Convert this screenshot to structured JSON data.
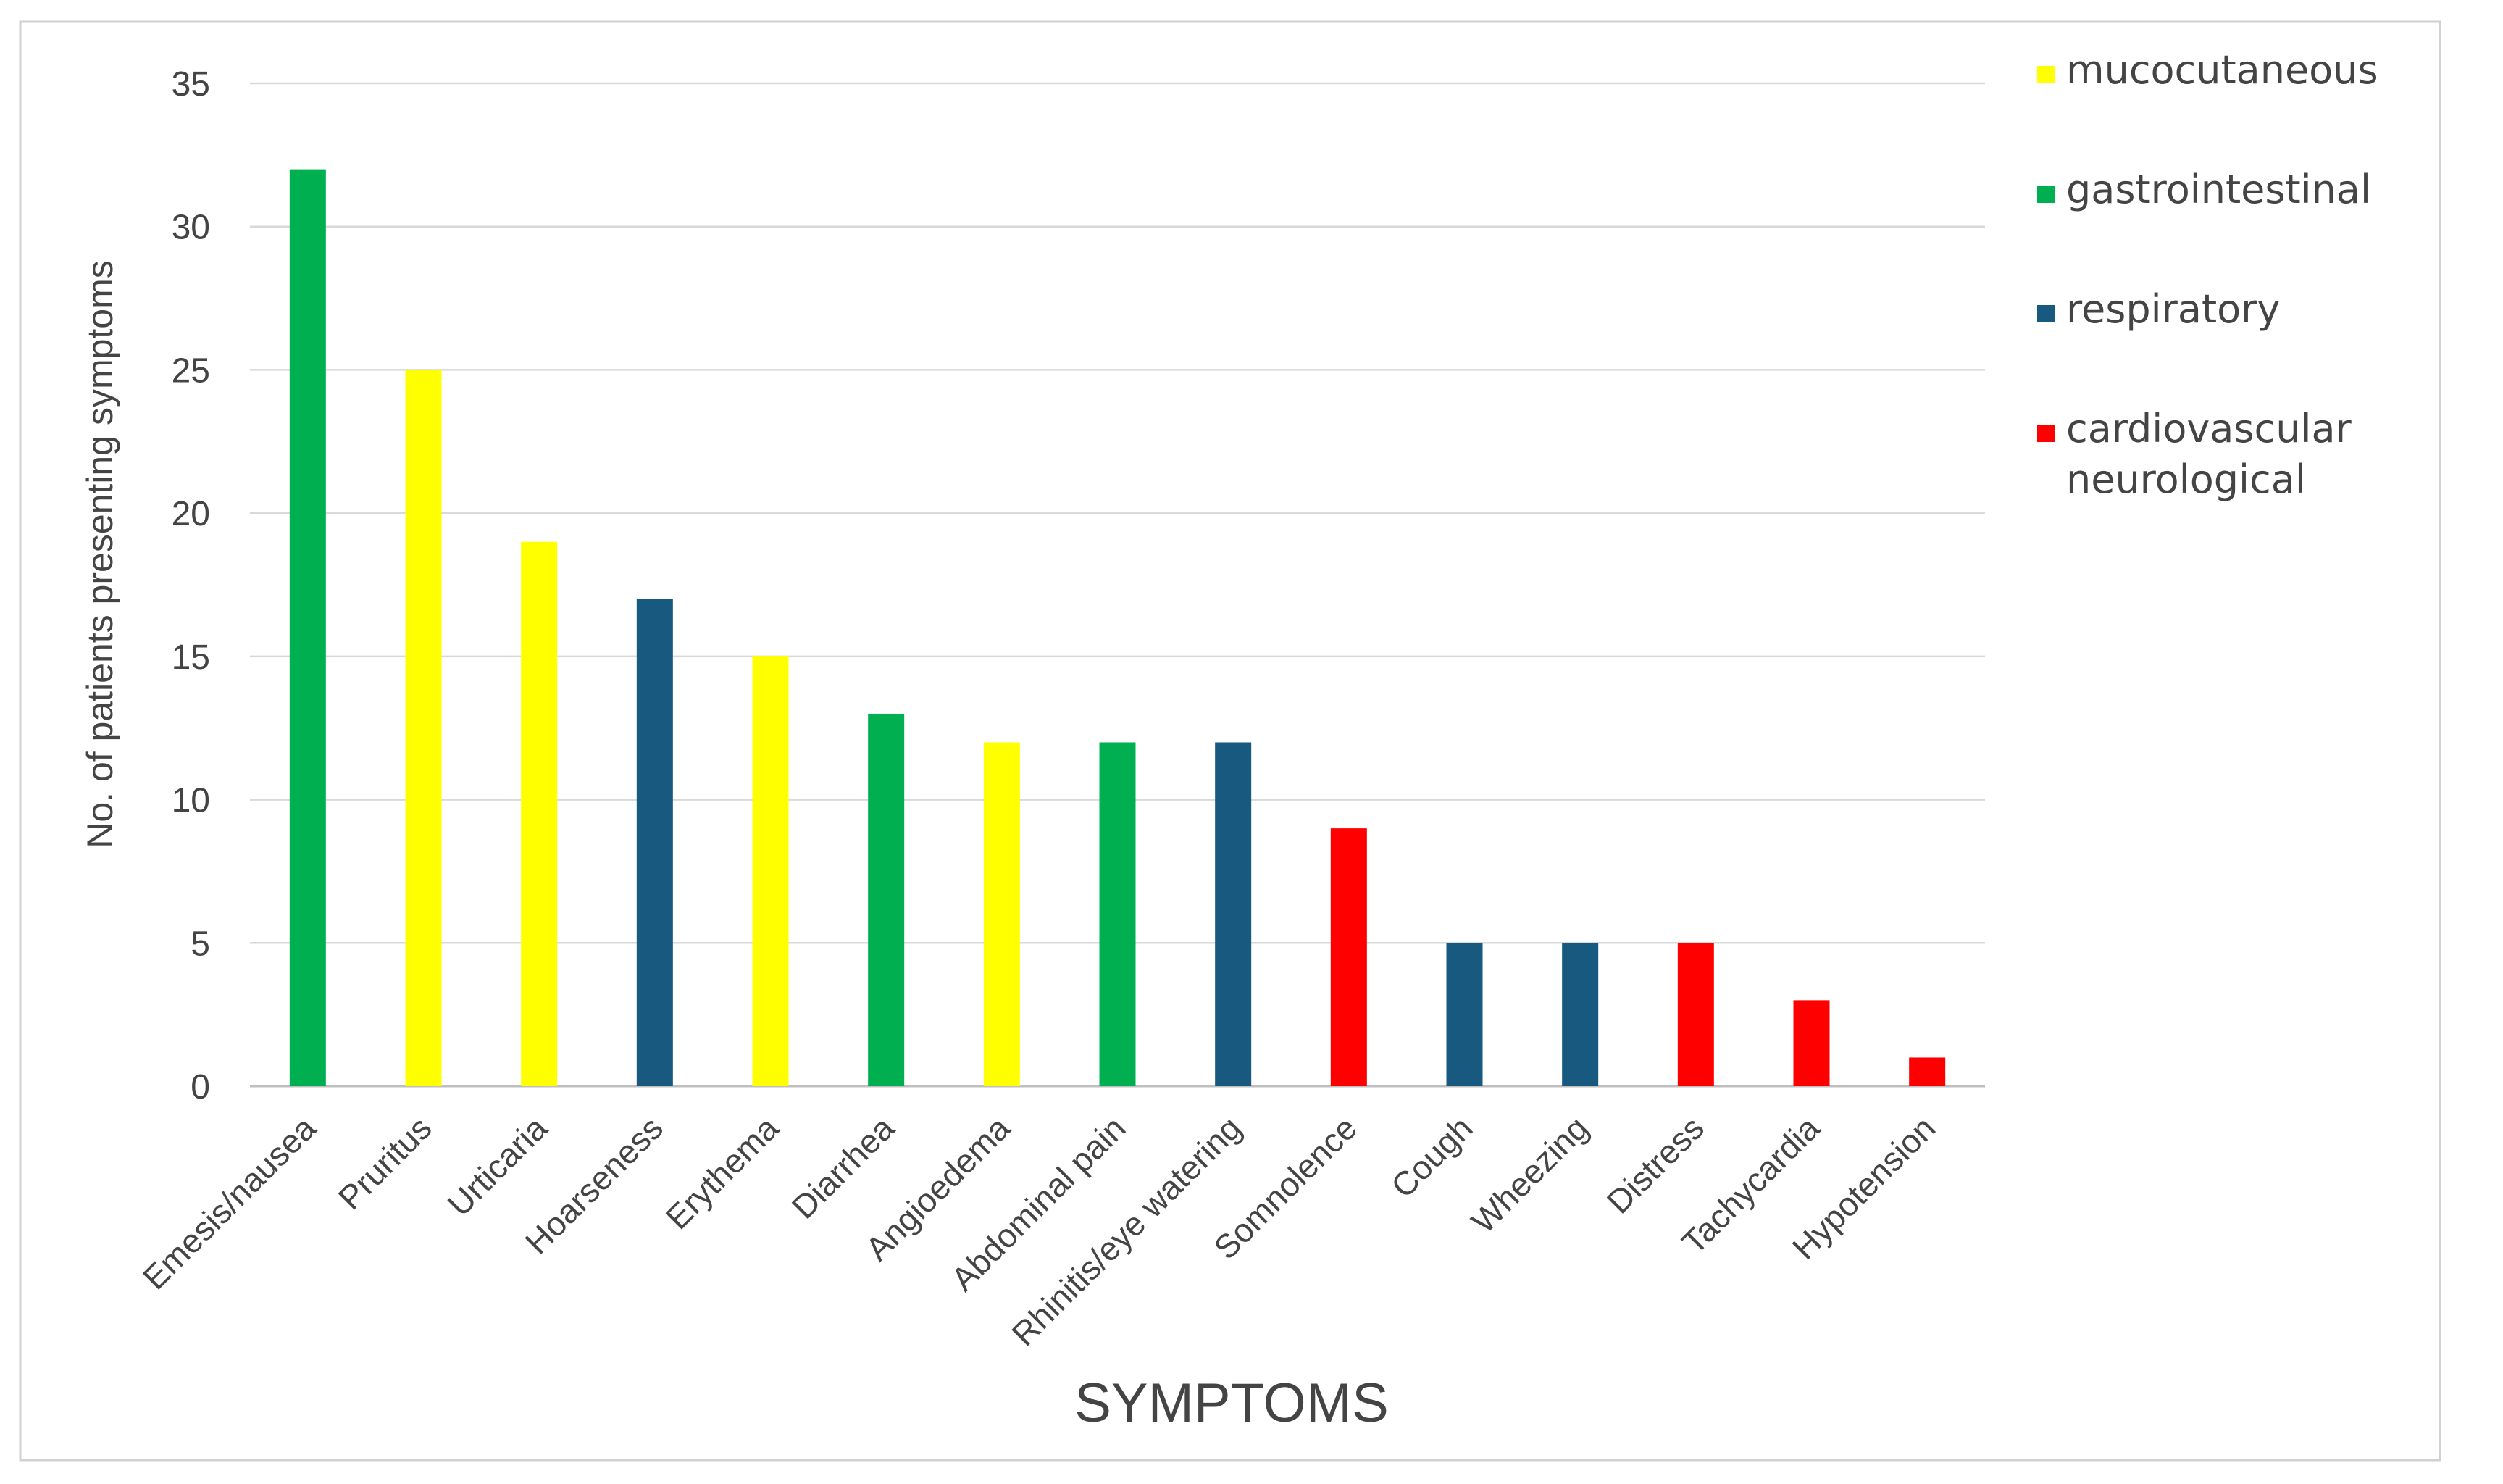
{
  "chart_data": {
    "type": "bar",
    "title": "",
    "xlabel": "SYMPTOMS",
    "ylabel": "No. of patients presenting symptoms",
    "ylim": [
      0,
      35
    ],
    "yticks": [
      0,
      5,
      10,
      15,
      20,
      25,
      30,
      35
    ],
    "grid": true,
    "legend_position": "top-right",
    "categories": [
      "Emesis/nausea",
      "Pruritus",
      "Urticaria",
      "Hoarseness",
      "Erythema",
      "Diarrhea",
      "Angioedema",
      "Abdominal pain",
      "Rhinitis/eye watering",
      "Somnolence",
      "Cough",
      "Wheezing",
      "Distress",
      "Tachycardia",
      "Hypotension"
    ],
    "values": [
      32,
      25,
      19,
      17,
      15,
      13,
      12,
      12,
      12,
      9,
      5,
      5,
      5,
      3,
      1
    ],
    "bar_groups": [
      "gastrointestinal",
      "mucocutaneous",
      "mucocutaneous",
      "respiratory",
      "mucocutaneous",
      "gastrointestinal",
      "mucocutaneous",
      "gastrointestinal",
      "respiratory",
      "cardiovascular",
      "respiratory",
      "respiratory",
      "cardiovascular",
      "cardiovascular",
      "cardiovascular"
    ],
    "groups": [
      {
        "key": "mucocutaneous",
        "lines": [
          "mucocutaneous"
        ],
        "color": "#ffff00"
      },
      {
        "key": "gastrointestinal",
        "lines": [
          "gastrointestinal"
        ],
        "color": "#00b050"
      },
      {
        "key": "respiratory",
        "lines": [
          "respiratory"
        ],
        "color": "#17597f"
      },
      {
        "key": "cardiovascular",
        "lines": [
          "cardiovascular",
          "neurological"
        ],
        "color": "#ff0000"
      }
    ]
  },
  "colors": {
    "grid": "#d9d9d9",
    "axis": "#bfbfbf",
    "text": "#444444",
    "frame": "#d0d0d0",
    "background": "#ffffff"
  }
}
